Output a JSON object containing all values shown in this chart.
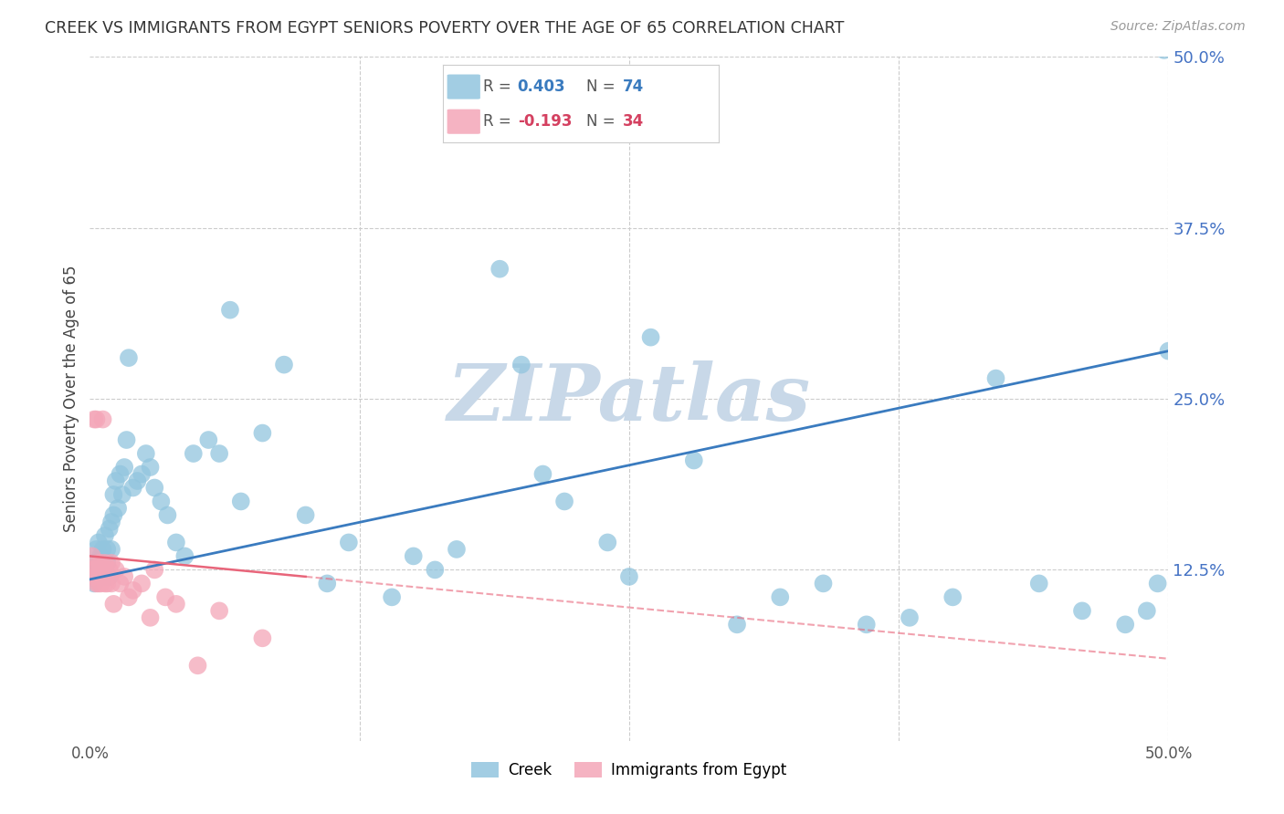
{
  "title": "CREEK VS IMMIGRANTS FROM EGYPT SENIORS POVERTY OVER THE AGE OF 65 CORRELATION CHART",
  "source": "Source: ZipAtlas.com",
  "ylabel": "Seniors Poverty Over the Age of 65",
  "xlim": [
    0.0,
    0.5
  ],
  "ylim": [
    0.0,
    0.5
  ],
  "ytick_positions": [
    0.125,
    0.25,
    0.375,
    0.5
  ],
  "ytick_labels": [
    "12.5%",
    "25.0%",
    "37.5%",
    "50.0%"
  ],
  "xtick_positions": [
    0.0,
    0.5
  ],
  "xtick_labels": [
    "0.0%",
    "50.0%"
  ],
  "creek_R": 0.403,
  "creek_N": 74,
  "egypt_R": -0.193,
  "egypt_N": 34,
  "creek_color": "#92c5de",
  "egypt_color": "#f4a6b8",
  "creek_line_color": "#3a7bbf",
  "egypt_line_color": "#e8657a",
  "creek_line_x0": 0.0,
  "creek_line_y0": 0.118,
  "creek_line_x1": 0.5,
  "creek_line_y1": 0.285,
  "egypt_line_x0": 0.0,
  "egypt_line_y0": 0.135,
  "egypt_line_x1": 0.5,
  "egypt_line_y1": 0.06,
  "egypt_line_solid_x1": 0.1,
  "watermark_text": "ZIPatlas",
  "watermark_color": "#c8d8e8",
  "background_color": "#ffffff",
  "grid_color": "#cccccc",
  "creek_x": [
    0.001,
    0.002,
    0.002,
    0.003,
    0.003,
    0.004,
    0.004,
    0.005,
    0.005,
    0.006,
    0.006,
    0.007,
    0.007,
    0.008,
    0.008,
    0.009,
    0.009,
    0.01,
    0.01,
    0.011,
    0.011,
    0.012,
    0.013,
    0.014,
    0.015,
    0.016,
    0.017,
    0.018,
    0.02,
    0.022,
    0.024,
    0.026,
    0.028,
    0.03,
    0.033,
    0.036,
    0.04,
    0.044,
    0.048,
    0.055,
    0.06,
    0.065,
    0.07,
    0.08,
    0.09,
    0.1,
    0.11,
    0.12,
    0.14,
    0.15,
    0.16,
    0.17,
    0.19,
    0.2,
    0.21,
    0.22,
    0.24,
    0.25,
    0.26,
    0.28,
    0.3,
    0.32,
    0.34,
    0.36,
    0.38,
    0.4,
    0.42,
    0.44,
    0.46,
    0.48,
    0.49,
    0.495,
    0.498,
    0.5
  ],
  "creek_y": [
    0.125,
    0.13,
    0.115,
    0.12,
    0.14,
    0.13,
    0.145,
    0.12,
    0.135,
    0.13,
    0.14,
    0.15,
    0.12,
    0.14,
    0.13,
    0.155,
    0.12,
    0.16,
    0.14,
    0.18,
    0.165,
    0.19,
    0.17,
    0.195,
    0.18,
    0.2,
    0.22,
    0.28,
    0.185,
    0.19,
    0.195,
    0.21,
    0.2,
    0.185,
    0.175,
    0.165,
    0.145,
    0.135,
    0.21,
    0.22,
    0.21,
    0.315,
    0.175,
    0.225,
    0.275,
    0.165,
    0.115,
    0.145,
    0.105,
    0.135,
    0.125,
    0.14,
    0.345,
    0.275,
    0.195,
    0.175,
    0.145,
    0.12,
    0.295,
    0.205,
    0.085,
    0.105,
    0.115,
    0.085,
    0.09,
    0.105,
    0.265,
    0.115,
    0.095,
    0.085,
    0.095,
    0.115,
    0.505,
    0.285
  ],
  "egypt_x": [
    0.001,
    0.001,
    0.002,
    0.002,
    0.003,
    0.003,
    0.003,
    0.004,
    0.004,
    0.005,
    0.005,
    0.005,
    0.006,
    0.006,
    0.007,
    0.007,
    0.008,
    0.009,
    0.01,
    0.01,
    0.011,
    0.012,
    0.014,
    0.016,
    0.018,
    0.02,
    0.024,
    0.028,
    0.03,
    0.035,
    0.04,
    0.05,
    0.06,
    0.08
  ],
  "egypt_y": [
    0.125,
    0.135,
    0.12,
    0.235,
    0.115,
    0.125,
    0.235,
    0.115,
    0.13,
    0.125,
    0.115,
    0.13,
    0.12,
    0.235,
    0.115,
    0.13,
    0.115,
    0.125,
    0.115,
    0.13,
    0.1,
    0.125,
    0.115,
    0.12,
    0.105,
    0.11,
    0.115,
    0.09,
    0.125,
    0.105,
    0.1,
    0.055,
    0.095,
    0.075
  ]
}
